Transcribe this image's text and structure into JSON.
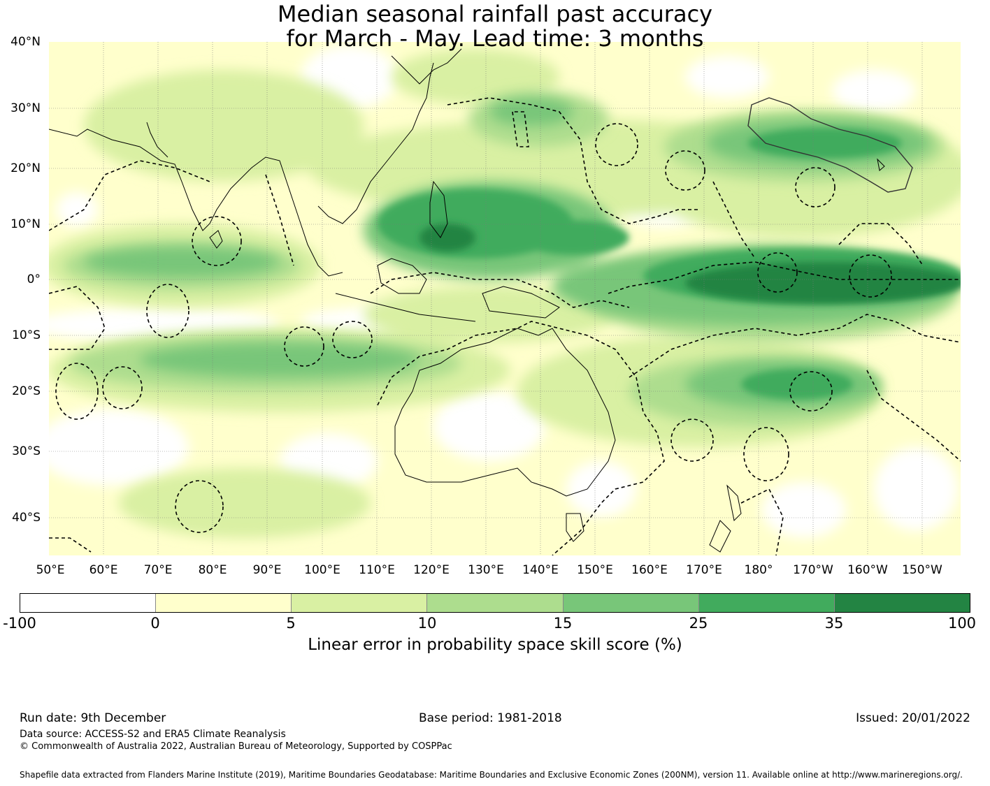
{
  "title_line1": "Median seasonal rainfall past accuracy",
  "title_line2": "for March - May. Lead time: 3 months",
  "lat_labels": [
    "40°N",
    "30°N",
    "20°N",
    "10°N",
    "0°",
    "10°S",
    "20°S",
    "30°S",
    "40°S"
  ],
  "lon_labels": [
    "50°E",
    "60°E",
    "70°E",
    "80°E",
    "90°E",
    "100°E",
    "110°E",
    "120°E",
    "130°E",
    "140°E",
    "150°E",
    "160°E",
    "170°E",
    "180°",
    "170°W",
    "160°W",
    "150°W"
  ],
  "colorbar": {
    "label": "Linear error in probability space skill score (%)",
    "ticks": [
      "-100",
      "0",
      "5",
      "10",
      "15",
      "25",
      "35",
      "100"
    ],
    "colors": [
      "#ffffff",
      "#ffffcc",
      "#d9f0a3",
      "#addd8e",
      "#78c679",
      "#41ab5d",
      "#238443"
    ]
  },
  "footer": {
    "run_date": "Run date: 9th December",
    "base_period": "Base period: 1981-2018",
    "issued": "Issued: 20/01/2022",
    "data_source": "Data source: ACCESS-S2 and ERA5 Climate Reanalysis",
    "copyright": "© Commonwealth of Australia 2022, Australian Bureau of Meteorology, Supported by COSPPac",
    "shapefile": "Shapefile data extracted from Flanders Marine Institute (2019), Maritime Boundaries Geodatabase: Maritime Boundaries and Exclusive Economic Zones (200NM), version 11. Available online at http://www.marineregions.org/."
  }
}
